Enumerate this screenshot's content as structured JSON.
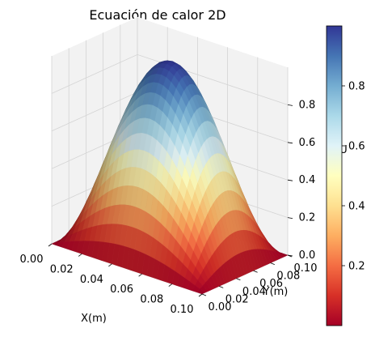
{
  "chart_data": {
    "type": "surface3d",
    "title": "Ecuación de calor 2D",
    "xlabel": "X(m)",
    "ylabel": "Y(m)",
    "zlabel": "U",
    "xlim": [
      0,
      0.1
    ],
    "ylim": [
      0,
      0.1
    ],
    "zlim": [
      0,
      1
    ],
    "x_ticks": [
      "0.00",
      "0.02",
      "0.04",
      "0.06",
      "0.08",
      "0.10"
    ],
    "y_ticks": [
      "0.00",
      "0.02",
      "0.04",
      "0.06",
      "0.08",
      "0.10"
    ],
    "z_ticks": [
      "0.0",
      "0.2",
      "0.4",
      "0.6",
      "0.8"
    ],
    "colorbar_ticks": [
      "0.2",
      "0.4",
      "0.6",
      "0.8"
    ],
    "colorbar_range": [
      0,
      1
    ],
    "colormap": "RdYlBu",
    "surface": "U(x, y) = sin(pi*x/0.1) * sin(pi*y/0.1)",
    "grid": true,
    "pane_color": "#f2f2f2",
    "grid_color": "#d4d4d4"
  }
}
